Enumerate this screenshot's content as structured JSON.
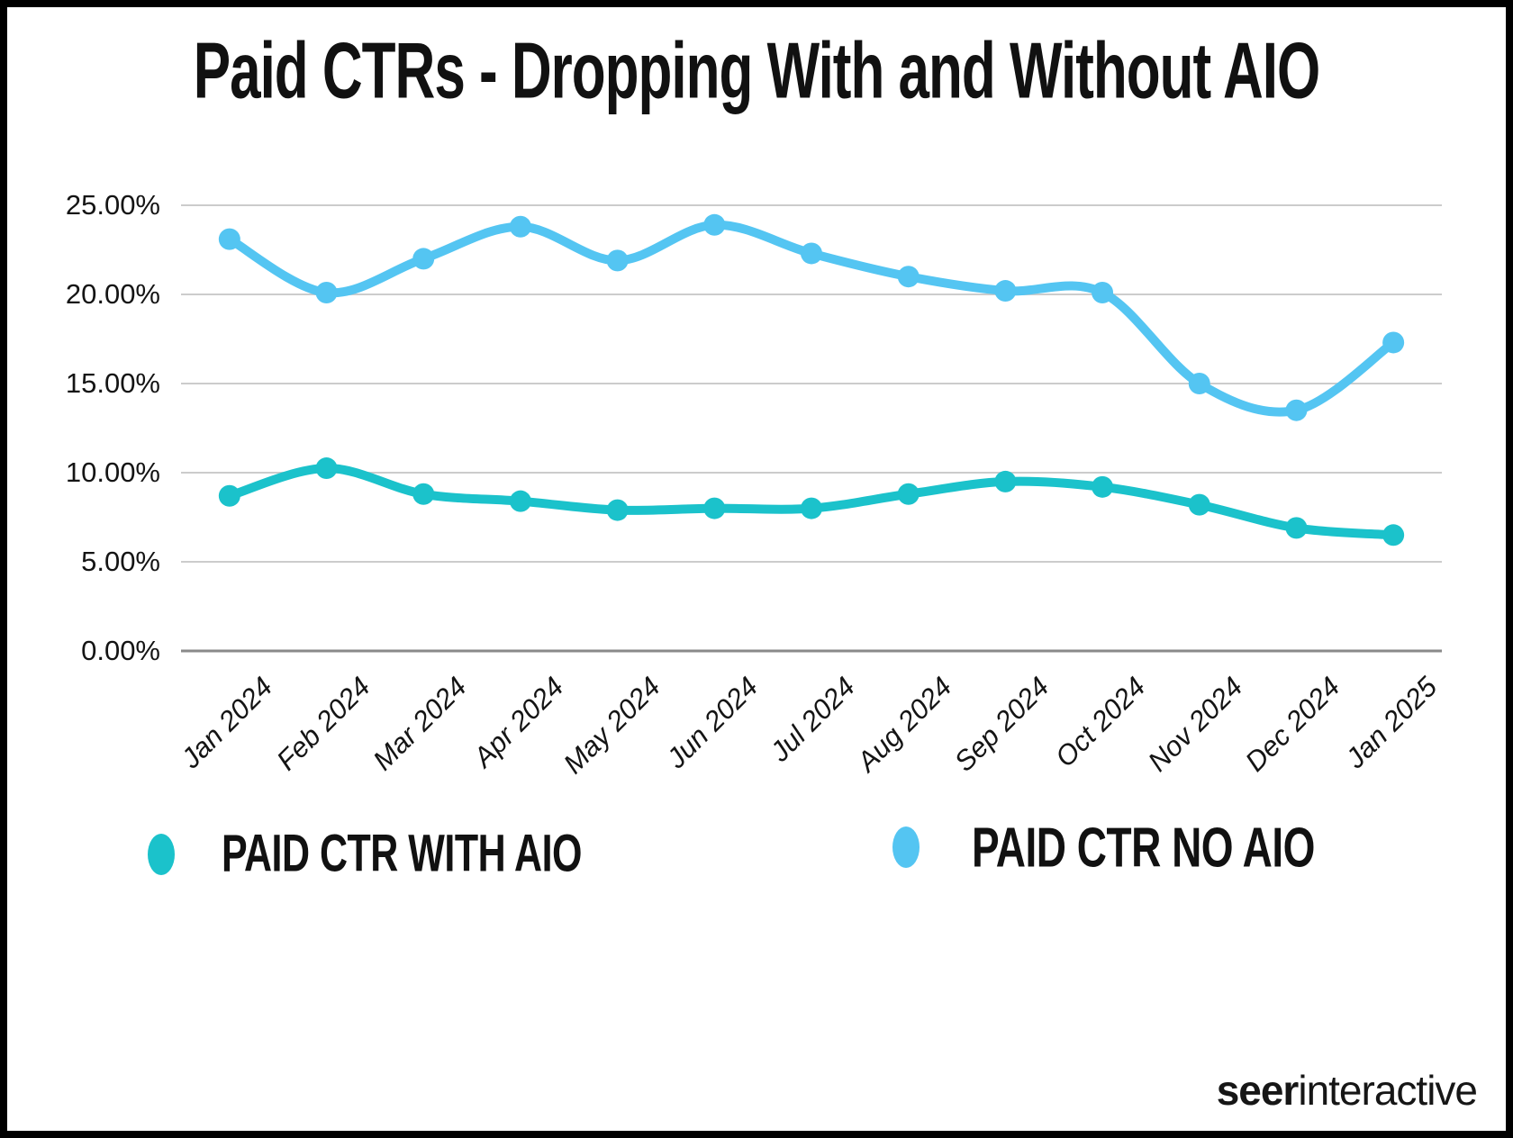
{
  "page": {
    "logo": {
      "bold": "seer",
      "regular": "interactive"
    }
  },
  "legend": {
    "items": [
      {
        "label": "PAID CTR WITH AIO",
        "color": "#1BC2CB"
      },
      {
        "label": "PAID CTR NO AIO",
        "color": "#54C5F2"
      }
    ]
  },
  "chart_data": {
    "type": "line",
    "title": "Paid CTRs - Dropping With and Without AIO",
    "categories": [
      "Jan 2024",
      "Feb 2024",
      "Mar 2024",
      "Apr 2024",
      "May 2024",
      "Jun 2024",
      "Jul 2024",
      "Aug 2024",
      "Sep 2024",
      "Oct 2024",
      "Nov 2024",
      "Dec 2024",
      "Jan 2025"
    ],
    "series": [
      {
        "name": "PAID CTR WITH AIO",
        "color": "#1BC2CB",
        "values": [
          8.7,
          10.25,
          8.8,
          8.4,
          7.9,
          8.0,
          8.0,
          8.8,
          9.5,
          9.2,
          8.2,
          6.9,
          6.5
        ]
      },
      {
        "name": "PAID CTR NO AIO",
        "color": "#54C5F2",
        "values": [
          23.1,
          20.1,
          22.0,
          23.8,
          21.9,
          23.9,
          22.3,
          21.0,
          20.2,
          20.1,
          15.0,
          13.5,
          17.3
        ]
      }
    ],
    "ylabel": "",
    "xlabel": "",
    "ylim": [
      0,
      25
    ],
    "yticks": {
      "values": [
        25,
        20,
        15,
        10,
        5,
        0
      ],
      "labels": [
        "25.00%",
        "20.00%",
        "15.00%",
        "10.00%",
        "5.00%",
        "0.00%"
      ]
    },
    "grid": true,
    "legend_position": "bottom",
    "line_width": 10,
    "point_radius": 12,
    "grid_color": "#cccccc",
    "axis_color": "#8a8a8a"
  }
}
